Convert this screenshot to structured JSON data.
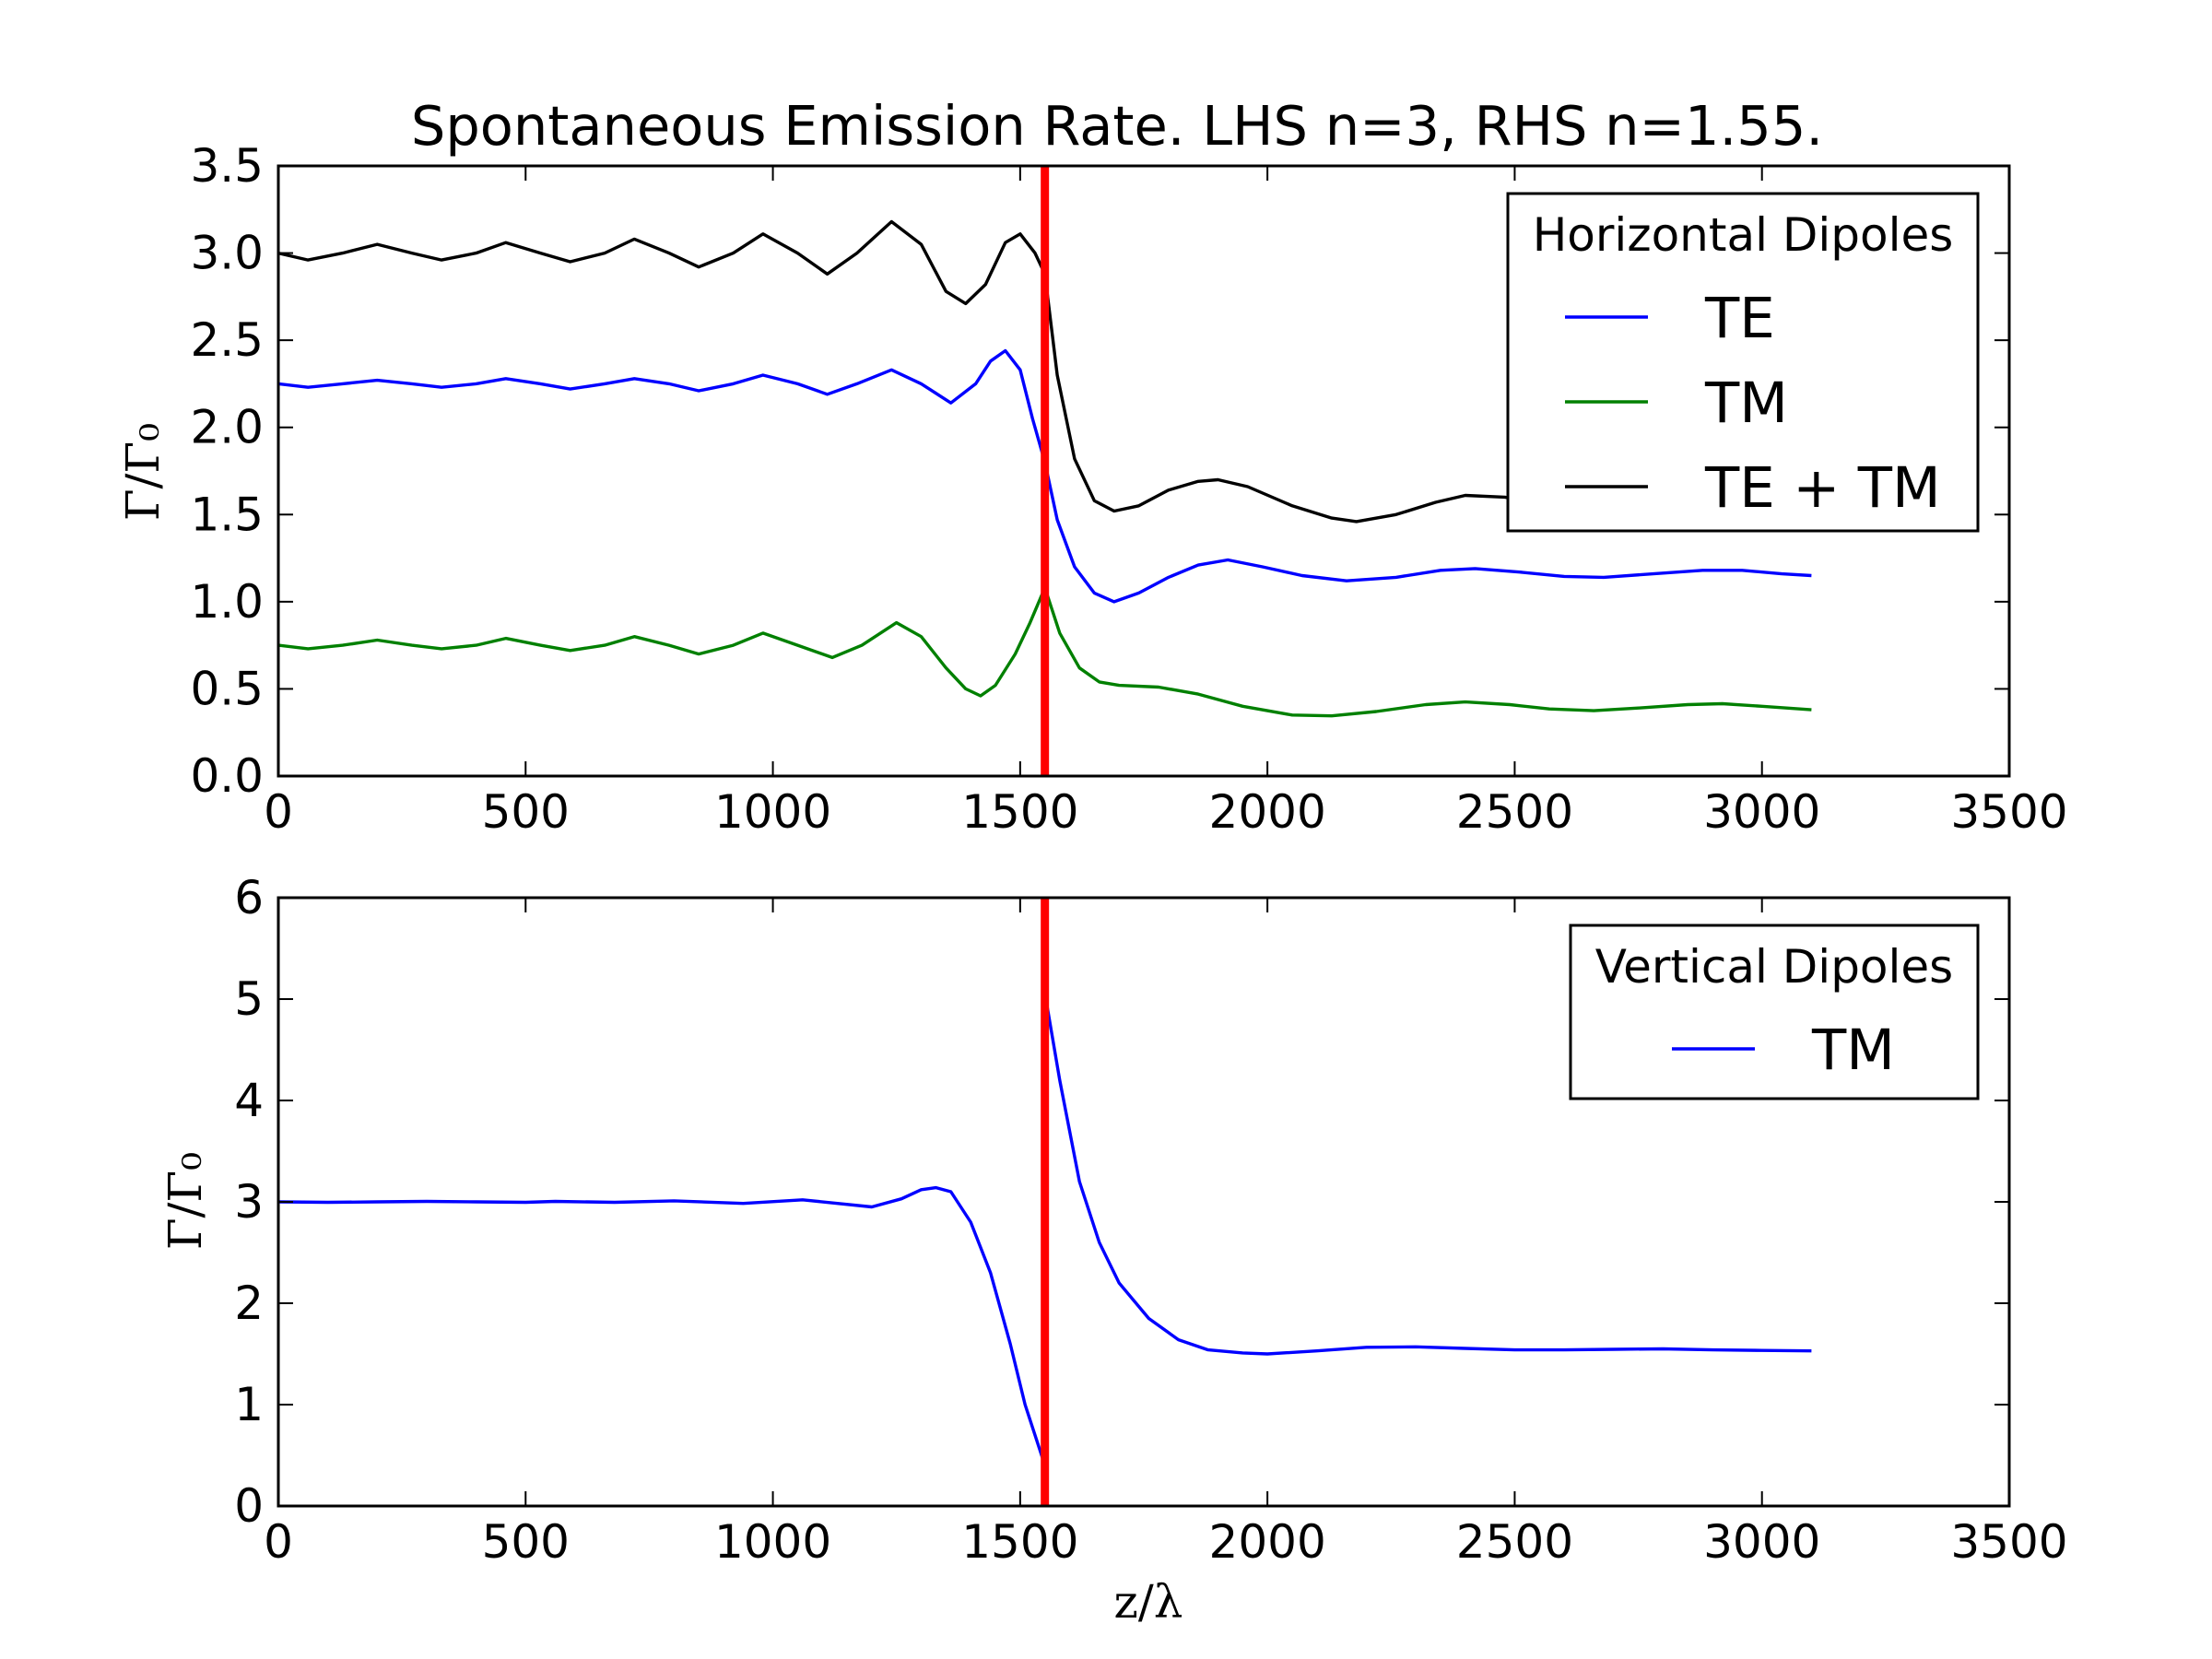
{
  "title": "Spontaneous Emission Rate. LHS n=3, RHS n=1.55.",
  "xlabel": "z/λ",
  "ylabel": "Γ/Γ₀",
  "colors": {
    "blue": "#0000ff",
    "green": "#008000",
    "black": "#000000",
    "interface": "#ff0000"
  },
  "chart_data": [
    {
      "type": "line",
      "title": "Spontaneous Emission Rate. LHS n=3, RHS n=1.55.",
      "xlabel": "",
      "ylabel": "Γ/Γ₀",
      "xlim": [
        0,
        3500
      ],
      "ylim": [
        0,
        3.5
      ],
      "xticks": [
        "0",
        "500",
        "1000",
        "1500",
        "2000",
        "2500",
        "3000",
        "3500"
      ],
      "yticks": [
        "0.0",
        "0.5",
        "1.0",
        "1.5",
        "2.0",
        "2.5",
        "3.0",
        "3.5"
      ],
      "xtick_values": [
        0,
        500,
        1000,
        1500,
        2000,
        2500,
        3000,
        3500
      ],
      "ytick_values": [
        0,
        0.5,
        1.0,
        1.5,
        2.0,
        2.5,
        3.0,
        3.5
      ],
      "grid": false,
      "legend_title": "Horizontal Dipoles",
      "legend_position": "top-right",
      "interface_x": 1550,
      "series": [
        {
          "name": "TE",
          "color": "#0000ff",
          "points": [
            [
              0,
              2.25
            ],
            [
              60,
              2.23
            ],
            [
              130,
              2.25
            ],
            [
              200,
              2.27
            ],
            [
              270,
              2.25
            ],
            [
              330,
              2.23
            ],
            [
              400,
              2.25
            ],
            [
              460,
              2.28
            ],
            [
              530,
              2.25
            ],
            [
              590,
              2.22
            ],
            [
              660,
              2.25
            ],
            [
              720,
              2.28
            ],
            [
              790,
              2.25
            ],
            [
              850,
              2.21
            ],
            [
              920,
              2.25
            ],
            [
              980,
              2.3
            ],
            [
              1050,
              2.25
            ],
            [
              1110,
              2.19
            ],
            [
              1170,
              2.25
            ],
            [
              1240,
              2.33
            ],
            [
              1300,
              2.25
            ],
            [
              1360,
              2.14
            ],
            [
              1410,
              2.25
            ],
            [
              1440,
              2.38
            ],
            [
              1470,
              2.44
            ],
            [
              1500,
              2.33
            ],
            [
              1525,
              2.05
            ],
            [
              1550,
              1.8
            ],
            [
              1575,
              1.47
            ],
            [
              1610,
              1.2
            ],
            [
              1650,
              1.05
            ],
            [
              1690,
              1.0
            ],
            [
              1740,
              1.05
            ],
            [
              1800,
              1.14
            ],
            [
              1860,
              1.21
            ],
            [
              1920,
              1.24
            ],
            [
              1990,
              1.2
            ],
            [
              2070,
              1.15
            ],
            [
              2160,
              1.12
            ],
            [
              2260,
              1.14
            ],
            [
              2350,
              1.18
            ],
            [
              2420,
              1.19
            ],
            [
              2510,
              1.17
            ],
            [
              2600,
              1.145
            ],
            [
              2680,
              1.14
            ],
            [
              2780,
              1.16
            ],
            [
              2880,
              1.18
            ],
            [
              2960,
              1.18
            ],
            [
              3040,
              1.16
            ],
            [
              3100,
              1.15
            ]
          ]
        },
        {
          "name": "TM",
          "color": "#008000",
          "points": [
            [
              0,
              0.75
            ],
            [
              60,
              0.73
            ],
            [
              130,
              0.75
            ],
            [
              200,
              0.78
            ],
            [
              270,
              0.75
            ],
            [
              330,
              0.73
            ],
            [
              400,
              0.75
            ],
            [
              460,
              0.79
            ],
            [
              530,
              0.75
            ],
            [
              590,
              0.72
            ],
            [
              660,
              0.75
            ],
            [
              720,
              0.8
            ],
            [
              790,
              0.75
            ],
            [
              850,
              0.7
            ],
            [
              920,
              0.75
            ],
            [
              980,
              0.82
            ],
            [
              1050,
              0.75
            ],
            [
              1120,
              0.68
            ],
            [
              1180,
              0.75
            ],
            [
              1250,
              0.88
            ],
            [
              1300,
              0.8
            ],
            [
              1350,
              0.62
            ],
            [
              1390,
              0.5
            ],
            [
              1420,
              0.46
            ],
            [
              1450,
              0.52
            ],
            [
              1490,
              0.7
            ],
            [
              1520,
              0.88
            ],
            [
              1550,
              1.08
            ],
            [
              1580,
              0.82
            ],
            [
              1620,
              0.62
            ],
            [
              1660,
              0.54
            ],
            [
              1700,
              0.52
            ],
            [
              1780,
              0.51
            ],
            [
              1860,
              0.47
            ],
            [
              1950,
              0.4
            ],
            [
              2050,
              0.35
            ],
            [
              2130,
              0.345
            ],
            [
              2220,
              0.37
            ],
            [
              2320,
              0.41
            ],
            [
              2400,
              0.425
            ],
            [
              2490,
              0.41
            ],
            [
              2570,
              0.385
            ],
            [
              2660,
              0.375
            ],
            [
              2750,
              0.39
            ],
            [
              2850,
              0.41
            ],
            [
              2920,
              0.415
            ],
            [
              3000,
              0.4
            ],
            [
              3100,
              0.38
            ]
          ]
        },
        {
          "name": "TE + TM",
          "color": "#000000",
          "points": [
            [
              0,
              3.0
            ],
            [
              60,
              2.96
            ],
            [
              130,
              3.0
            ],
            [
              200,
              3.05
            ],
            [
              270,
              3.0
            ],
            [
              330,
              2.96
            ],
            [
              400,
              3.0
            ],
            [
              460,
              3.06
            ],
            [
              530,
              3.0
            ],
            [
              590,
              2.95
            ],
            [
              660,
              3.0
            ],
            [
              720,
              3.08
            ],
            [
              790,
              3.0
            ],
            [
              850,
              2.92
            ],
            [
              920,
              3.0
            ],
            [
              980,
              3.11
            ],
            [
              1050,
              3.0
            ],
            [
              1110,
              2.88
            ],
            [
              1170,
              3.0
            ],
            [
              1240,
              3.18
            ],
            [
              1300,
              3.05
            ],
            [
              1350,
              2.78
            ],
            [
              1390,
              2.71
            ],
            [
              1430,
              2.82
            ],
            [
              1470,
              3.06
            ],
            [
              1500,
              3.11
            ],
            [
              1530,
              3.0
            ],
            [
              1550,
              2.88
            ],
            [
              1575,
              2.3
            ],
            [
              1610,
              1.82
            ],
            [
              1650,
              1.58
            ],
            [
              1690,
              1.52
            ],
            [
              1740,
              1.55
            ],
            [
              1800,
              1.64
            ],
            [
              1860,
              1.69
            ],
            [
              1900,
              1.7
            ],
            [
              1960,
              1.66
            ],
            [
              2050,
              1.55
            ],
            [
              2130,
              1.48
            ],
            [
              2180,
              1.46
            ],
            [
              2260,
              1.5
            ],
            [
              2340,
              1.57
            ],
            [
              2400,
              1.61
            ],
            [
              2480,
              1.6
            ],
            [
              2540,
              1.57
            ]
          ]
        }
      ]
    },
    {
      "type": "line",
      "title": "",
      "xlabel": "z/λ",
      "ylabel": "Γ/Γ₀",
      "xlim": [
        0,
        3500
      ],
      "ylim": [
        0,
        6
      ],
      "xticks": [
        "0",
        "500",
        "1000",
        "1500",
        "2000",
        "2500",
        "3000",
        "3500"
      ],
      "yticks": [
        "0",
        "1",
        "2",
        "3",
        "4",
        "5",
        "6"
      ],
      "xtick_values": [
        0,
        500,
        1000,
        1500,
        2000,
        2500,
        3000,
        3500
      ],
      "ytick_values": [
        0,
        1,
        2,
        3,
        4,
        5,
        6
      ],
      "grid": false,
      "legend_title": "Vertical Dipoles",
      "legend_position": "top-right",
      "interface_x": 1550,
      "series": [
        {
          "name": "TM",
          "color": "#0000ff",
          "points": [
            [
              0,
              3.0
            ],
            [
              100,
              2.995
            ],
            [
              200,
              3.0
            ],
            [
              300,
              3.005
            ],
            [
              400,
              3.0
            ],
            [
              500,
              2.995
            ],
            [
              560,
              3.005
            ],
            [
              680,
              2.995
            ],
            [
              800,
              3.01
            ],
            [
              940,
              2.985
            ],
            [
              1060,
              3.02
            ],
            [
              1200,
              2.95
            ],
            [
              1260,
              3.03
            ],
            [
              1300,
              3.12
            ],
            [
              1330,
              3.14
            ],
            [
              1360,
              3.1
            ],
            [
              1400,
              2.8
            ],
            [
              1440,
              2.3
            ],
            [
              1480,
              1.6
            ],
            [
              1510,
              1.0
            ],
            [
              1550,
              0.4
            ],
            [
              1552,
              5.0
            ],
            [
              1580,
              4.2
            ],
            [
              1620,
              3.2
            ],
            [
              1660,
              2.6
            ],
            [
              1700,
              2.2
            ],
            [
              1760,
              1.85
            ],
            [
              1820,
              1.64
            ],
            [
              1880,
              1.54
            ],
            [
              1950,
              1.51
            ],
            [
              2000,
              1.5
            ],
            [
              2100,
              1.53
            ],
            [
              2200,
              1.565
            ],
            [
              2300,
              1.57
            ],
            [
              2400,
              1.555
            ],
            [
              2500,
              1.54
            ],
            [
              2600,
              1.54
            ],
            [
              2700,
              1.545
            ],
            [
              2800,
              1.55
            ],
            [
              2900,
              1.54
            ],
            [
              3000,
              1.535
            ],
            [
              3100,
              1.53
            ]
          ]
        }
      ]
    }
  ]
}
